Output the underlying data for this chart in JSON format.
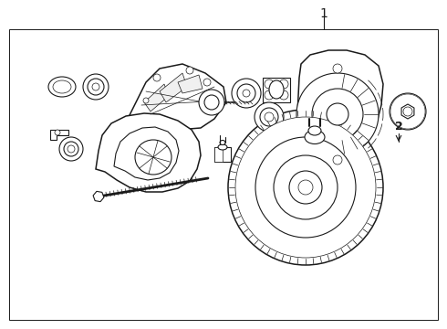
{
  "title_text": "1",
  "label_2": "2",
  "bg_color": "#ffffff",
  "line_color": "#1a1a1a",
  "border_color": "#bbbbbb",
  "title_fontsize": 10,
  "label_fontsize": 9,
  "fig_width": 4.9,
  "fig_height": 3.6,
  "dpi": 100
}
